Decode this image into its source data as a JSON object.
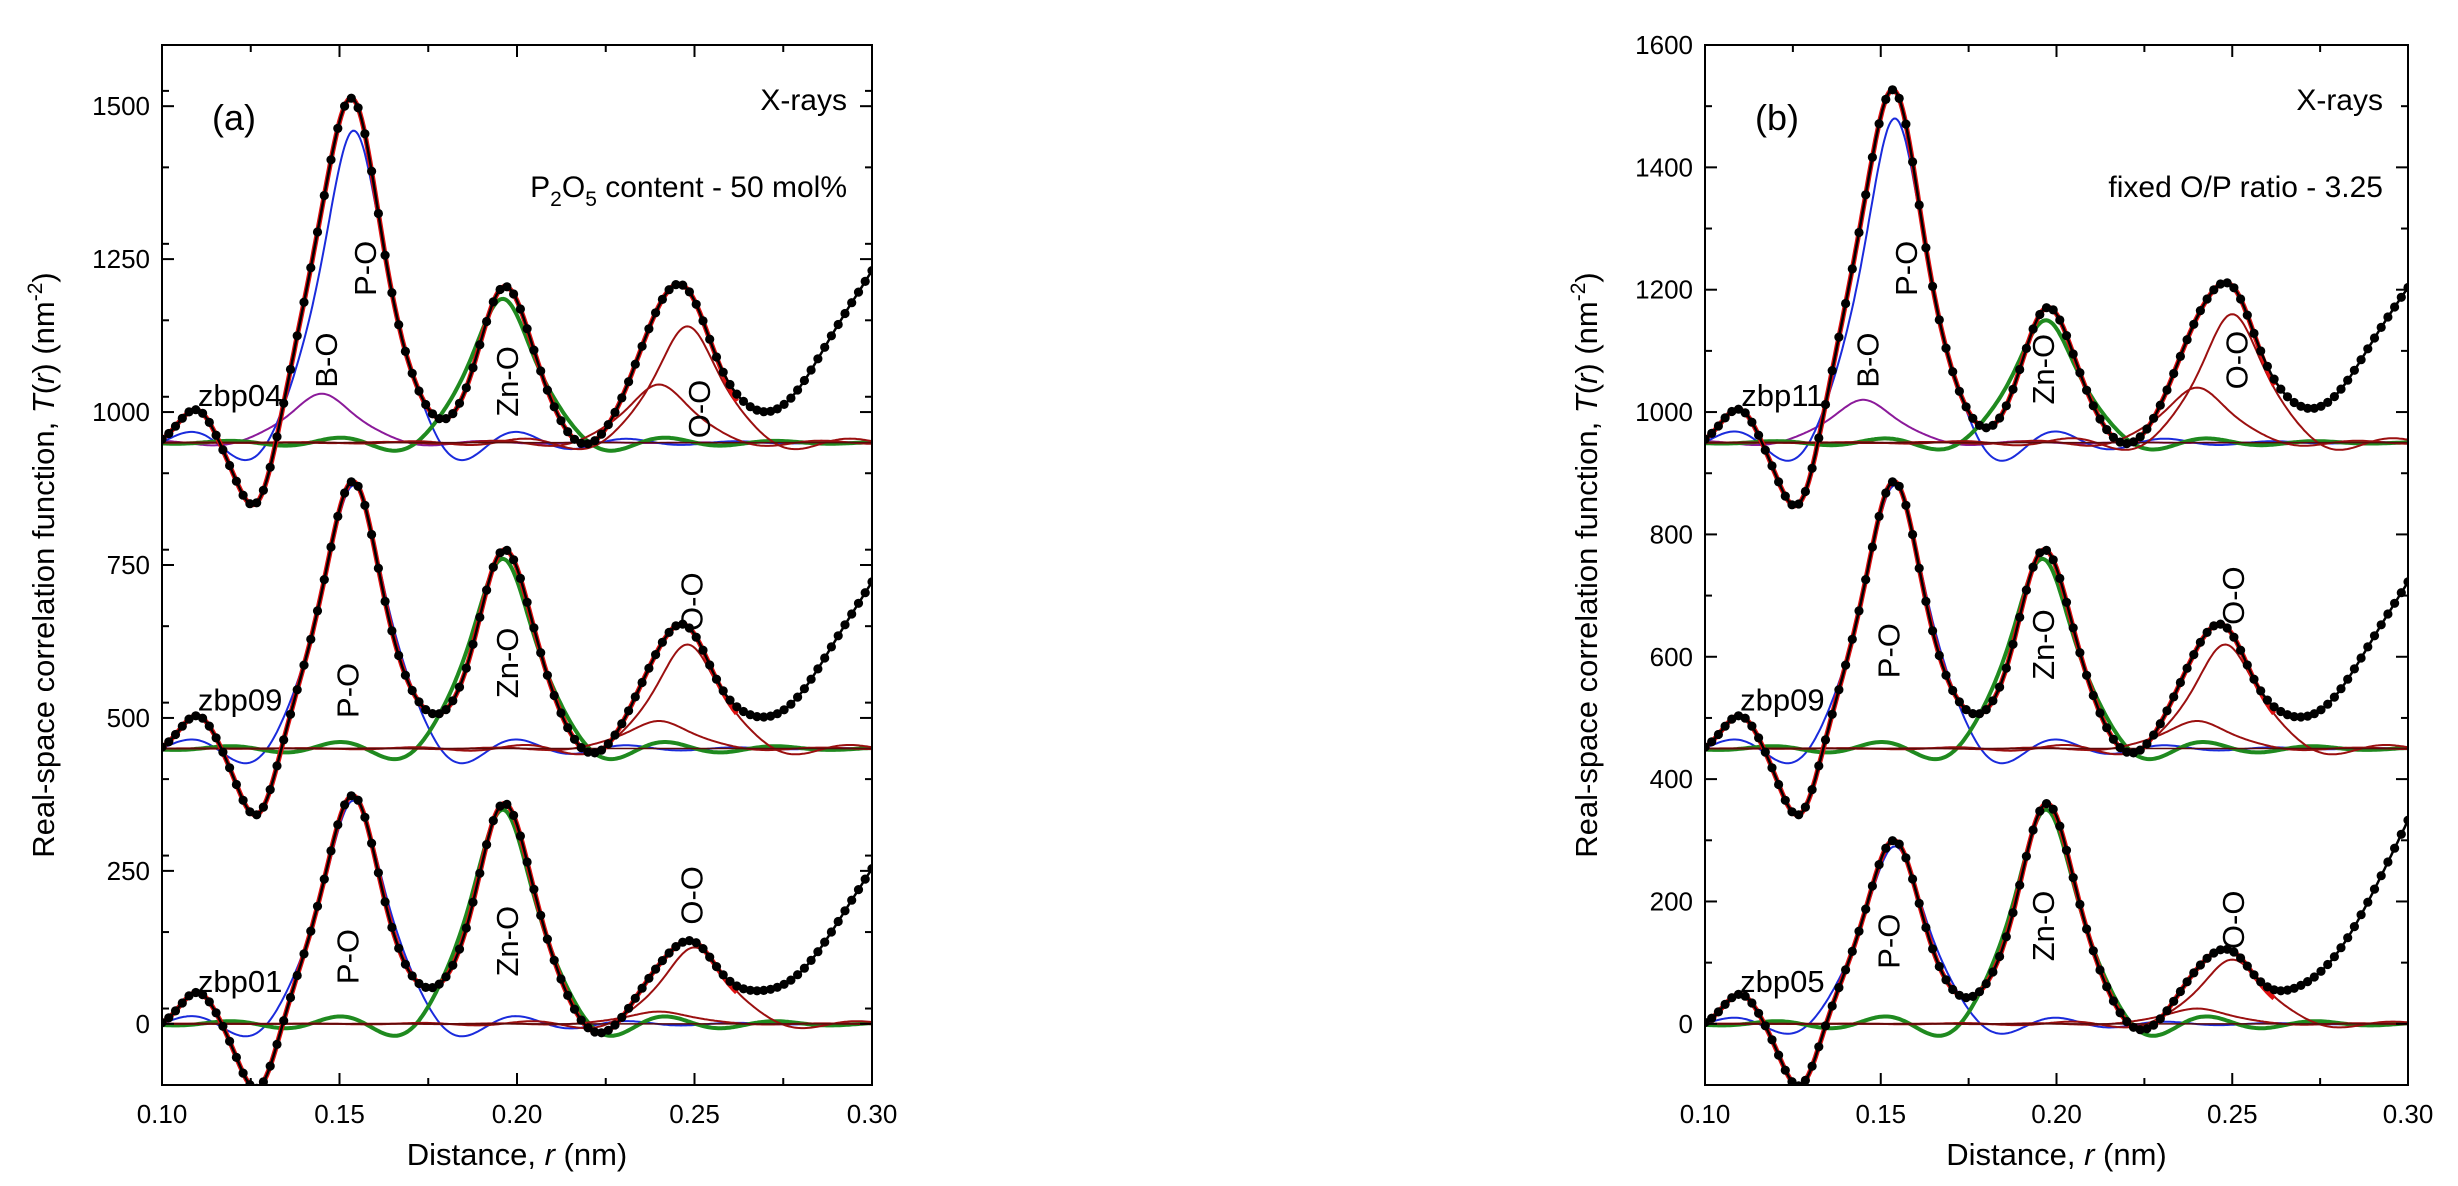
{
  "chart_data": [
    {
      "panel": "(a)",
      "type": "line",
      "xlabel": "Distance, r (nm)",
      "ylabel": "Real-space correlation function, T(r) (nm-2)",
      "annotation_top": "X-rays",
      "annotation_sub": {
        "pre": "P",
        "sub": "2",
        "mid": "O",
        "sub2": "5",
        "post": " content - 50 mol%"
      },
      "xlim": [
        0.1,
        0.3
      ],
      "ylim": [
        -100,
        1600
      ],
      "xticks": [
        "0.10",
        "0.15",
        "0.20",
        "0.25",
        "0.30"
      ],
      "yticks": [
        {
          "v": 0,
          "label": "0"
        },
        {
          "v": 250,
          "label": "250"
        },
        {
          "v": 500,
          "label": "500"
        },
        {
          "v": 750,
          "label": "750"
        },
        {
          "v": 1000,
          "label": "1000"
        },
        {
          "v": 1250,
          "label": "1250"
        },
        {
          "v": 1500,
          "label": "1500"
        }
      ],
      "peak_labels": [
        {
          "text": "B-O",
          "x": 0.147,
          "y": 1085
        },
        {
          "text": "P-O",
          "x": 0.158,
          "y": 1235
        },
        {
          "text": "Zn-O",
          "x": 0.198,
          "y": 1050
        },
        {
          "text": "O-O",
          "x": 0.252,
          "y": 1005
        },
        {
          "text": "P-O",
          "x": 0.153,
          "y": 545
        },
        {
          "text": "Zn-O",
          "x": 0.198,
          "y": 590
        },
        {
          "text": "O-O",
          "x": 0.25,
          "y": 690
        },
        {
          "text": "P-O",
          "x": 0.153,
          "y": 110
        },
        {
          "text": "Zn-O",
          "x": 0.198,
          "y": 135
        },
        {
          "text": "O-O",
          "x": 0.25,
          "y": 210
        }
      ],
      "samples": [
        {
          "name": "zbp04",
          "offset": 950,
          "label_x": 0.122,
          "label_y": 1010,
          "components": [
            {
              "name": "B-O",
              "color": "#8b1a9a",
              "r": 0.145,
              "a": 80
            },
            {
              "name": "P-O",
              "color": "#1a2bdc",
              "r": 0.154,
              "a": 510
            },
            {
              "name": "Zn-O",
              "color": "#1f8a1f",
              "r": 0.196,
              "a": 235
            },
            {
              "name": "O-O",
              "color": "#9b1010",
              "r": 0.248,
              "a": 190
            },
            {
              "name": "O-O2",
              "color": "#9b1010",
              "r": 0.24,
              "a": 95
            }
          ],
          "base_up": 280
        },
        {
          "name": "zbp09",
          "offset": 450,
          "label_x": 0.122,
          "label_y": 512,
          "components": [
            {
              "name": "P-O",
              "color": "#1a2bdc",
              "r": 0.154,
              "a": 430
            },
            {
              "name": "Zn-O",
              "color": "#1f8a1f",
              "r": 0.196,
              "a": 310
            },
            {
              "name": "O-O",
              "color": "#9b1010",
              "r": 0.248,
              "a": 170
            },
            {
              "name": "O-O2",
              "color": "#9b1010",
              "r": 0.24,
              "a": 45
            }
          ],
          "base_up": 270
        },
        {
          "name": "zbp01",
          "offset": 0,
          "label_x": 0.122,
          "label_y": 52,
          "components": [
            {
              "name": "P-O",
              "color": "#1a2bdc",
              "r": 0.154,
              "a": 365
            },
            {
              "name": "Zn-O",
              "color": "#1f8a1f",
              "r": 0.196,
              "a": 350
            },
            {
              "name": "O-O",
              "color": "#9b1010",
              "r": 0.25,
              "a": 125
            },
            {
              "name": "O-O2",
              "color": "#9b1010",
              "r": 0.24,
              "a": 20
            }
          ],
          "base_up": 250
        }
      ]
    },
    {
      "panel": "(b)",
      "type": "line",
      "xlabel": "Distance, r (nm)",
      "ylabel": "Real-space correlation function, T(r) (nm-2)",
      "annotation_top": "X-rays",
      "annotation_sub_text": "fixed O/P ratio - 3.25",
      "xlim": [
        0.1,
        0.3
      ],
      "ylim": [
        -100,
        1600
      ],
      "xticks": [
        "0.10",
        "0.15",
        "0.20",
        "0.25",
        "0.30"
      ],
      "yticks": [
        {
          "v": 0,
          "label": "0"
        },
        {
          "v": 200,
          "label": "200"
        },
        {
          "v": 400,
          "label": "400"
        },
        {
          "v": 600,
          "label": "600"
        },
        {
          "v": 800,
          "label": "800"
        },
        {
          "v": 1000,
          "label": "1000"
        },
        {
          "v": 1200,
          "label": "1200"
        },
        {
          "v": 1400,
          "label": "1400"
        },
        {
          "v": 1600,
          "label": "1600"
        }
      ],
      "peak_labels": [
        {
          "text": "B-O",
          "x": 0.147,
          "y": 1085
        },
        {
          "text": "P-O",
          "x": 0.158,
          "y": 1235
        },
        {
          "text": "Zn-O",
          "x": 0.197,
          "y": 1070
        },
        {
          "text": "O-O",
          "x": 0.252,
          "y": 1085
        },
        {
          "text": "P-O",
          "x": 0.153,
          "y": 610
        },
        {
          "text": "Zn-O",
          "x": 0.197,
          "y": 620
        },
        {
          "text": "O-O",
          "x": 0.251,
          "y": 700
        },
        {
          "text": "P-O",
          "x": 0.153,
          "y": 135
        },
        {
          "text": "Zn-O",
          "x": 0.197,
          "y": 160
        },
        {
          "text": "O-O",
          "x": 0.251,
          "y": 170
        }
      ],
      "samples": [
        {
          "name": "zbp11",
          "offset": 950,
          "label_x": 0.122,
          "label_y": 1010,
          "components": [
            {
              "name": "B-O",
              "color": "#8b1a9a",
              "r": 0.145,
              "a": 70
            },
            {
              "name": "P-O",
              "color": "#1a2bdc",
              "r": 0.154,
              "a": 530
            },
            {
              "name": "Zn-O",
              "color": "#1f8a1f",
              "r": 0.197,
              "a": 200
            },
            {
              "name": "O-O",
              "color": "#9b1010",
              "r": 0.25,
              "a": 210
            },
            {
              "name": "O-O2",
              "color": "#9b1010",
              "r": 0.24,
              "a": 90
            }
          ],
          "base_up": 250
        },
        {
          "name": "zbp09",
          "offset": 450,
          "label_x": 0.122,
          "label_y": 512,
          "components": [
            {
              "name": "P-O",
              "color": "#1a2bdc",
              "r": 0.154,
              "a": 430
            },
            {
              "name": "Zn-O",
              "color": "#1f8a1f",
              "r": 0.196,
              "a": 310
            },
            {
              "name": "O-O",
              "color": "#9b1010",
              "r": 0.248,
              "a": 170
            },
            {
              "name": "O-O2",
              "color": "#9b1010",
              "r": 0.24,
              "a": 45
            }
          ],
          "base_up": 270
        },
        {
          "name": "zbp05",
          "offset": 0,
          "label_x": 0.122,
          "label_y": 52,
          "components": [
            {
              "name": "P-O",
              "color": "#1a2bdc",
              "r": 0.154,
              "a": 290
            },
            {
              "name": "Zn-O",
              "color": "#1f8a1f",
              "r": 0.197,
              "a": 350
            },
            {
              "name": "O-O",
              "color": "#9b1010",
              "r": 0.25,
              "a": 105
            },
            {
              "name": "O-O2",
              "color": "#9b1010",
              "r": 0.24,
              "a": 25
            }
          ],
          "base_up": 330
        }
      ]
    }
  ],
  "colors": {
    "experimental": "#000000",
    "total_fit": "#e01010",
    "B-O": "#8b1a9a",
    "P-O": "#1a2bdc",
    "Zn-O": "#1f8a1f",
    "O-O": "#9b1010"
  }
}
